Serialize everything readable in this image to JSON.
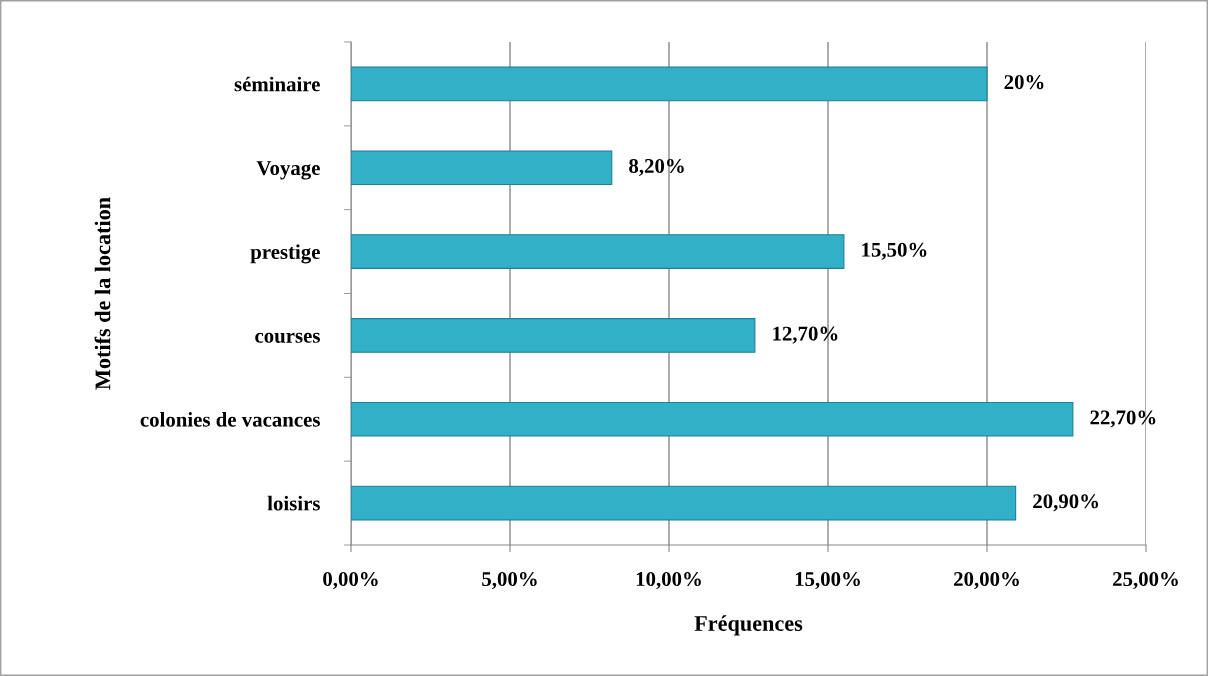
{
  "chart_data": {
    "type": "bar",
    "orientation": "horizontal",
    "xlabel": "Fréquences",
    "ylabel": "Motifs de la location",
    "categories": [
      "séminaire",
      "Voyage",
      "prestige",
      "courses",
      "colonies de vacances",
      "loisirs"
    ],
    "values": [
      20,
      8.2,
      15.5,
      12.7,
      22.7,
      20.9
    ],
    "value_labels": [
      "20%",
      "8,20%",
      "15,50%",
      "12,70%",
      "22,70%",
      "20,90%"
    ],
    "color": "#31b0c8",
    "xlim": [
      0,
      25
    ],
    "xticks": [
      {
        "value": 0,
        "label": "0,00%"
      },
      {
        "value": 5,
        "label": "5,00%"
      },
      {
        "value": 10,
        "label": "10,00%"
      },
      {
        "value": 15,
        "label": "15,00%"
      },
      {
        "value": 20,
        "label": "20,00%"
      },
      {
        "value": 25,
        "label": "25,00%"
      }
    ],
    "grid": "x",
    "legend": false
  }
}
